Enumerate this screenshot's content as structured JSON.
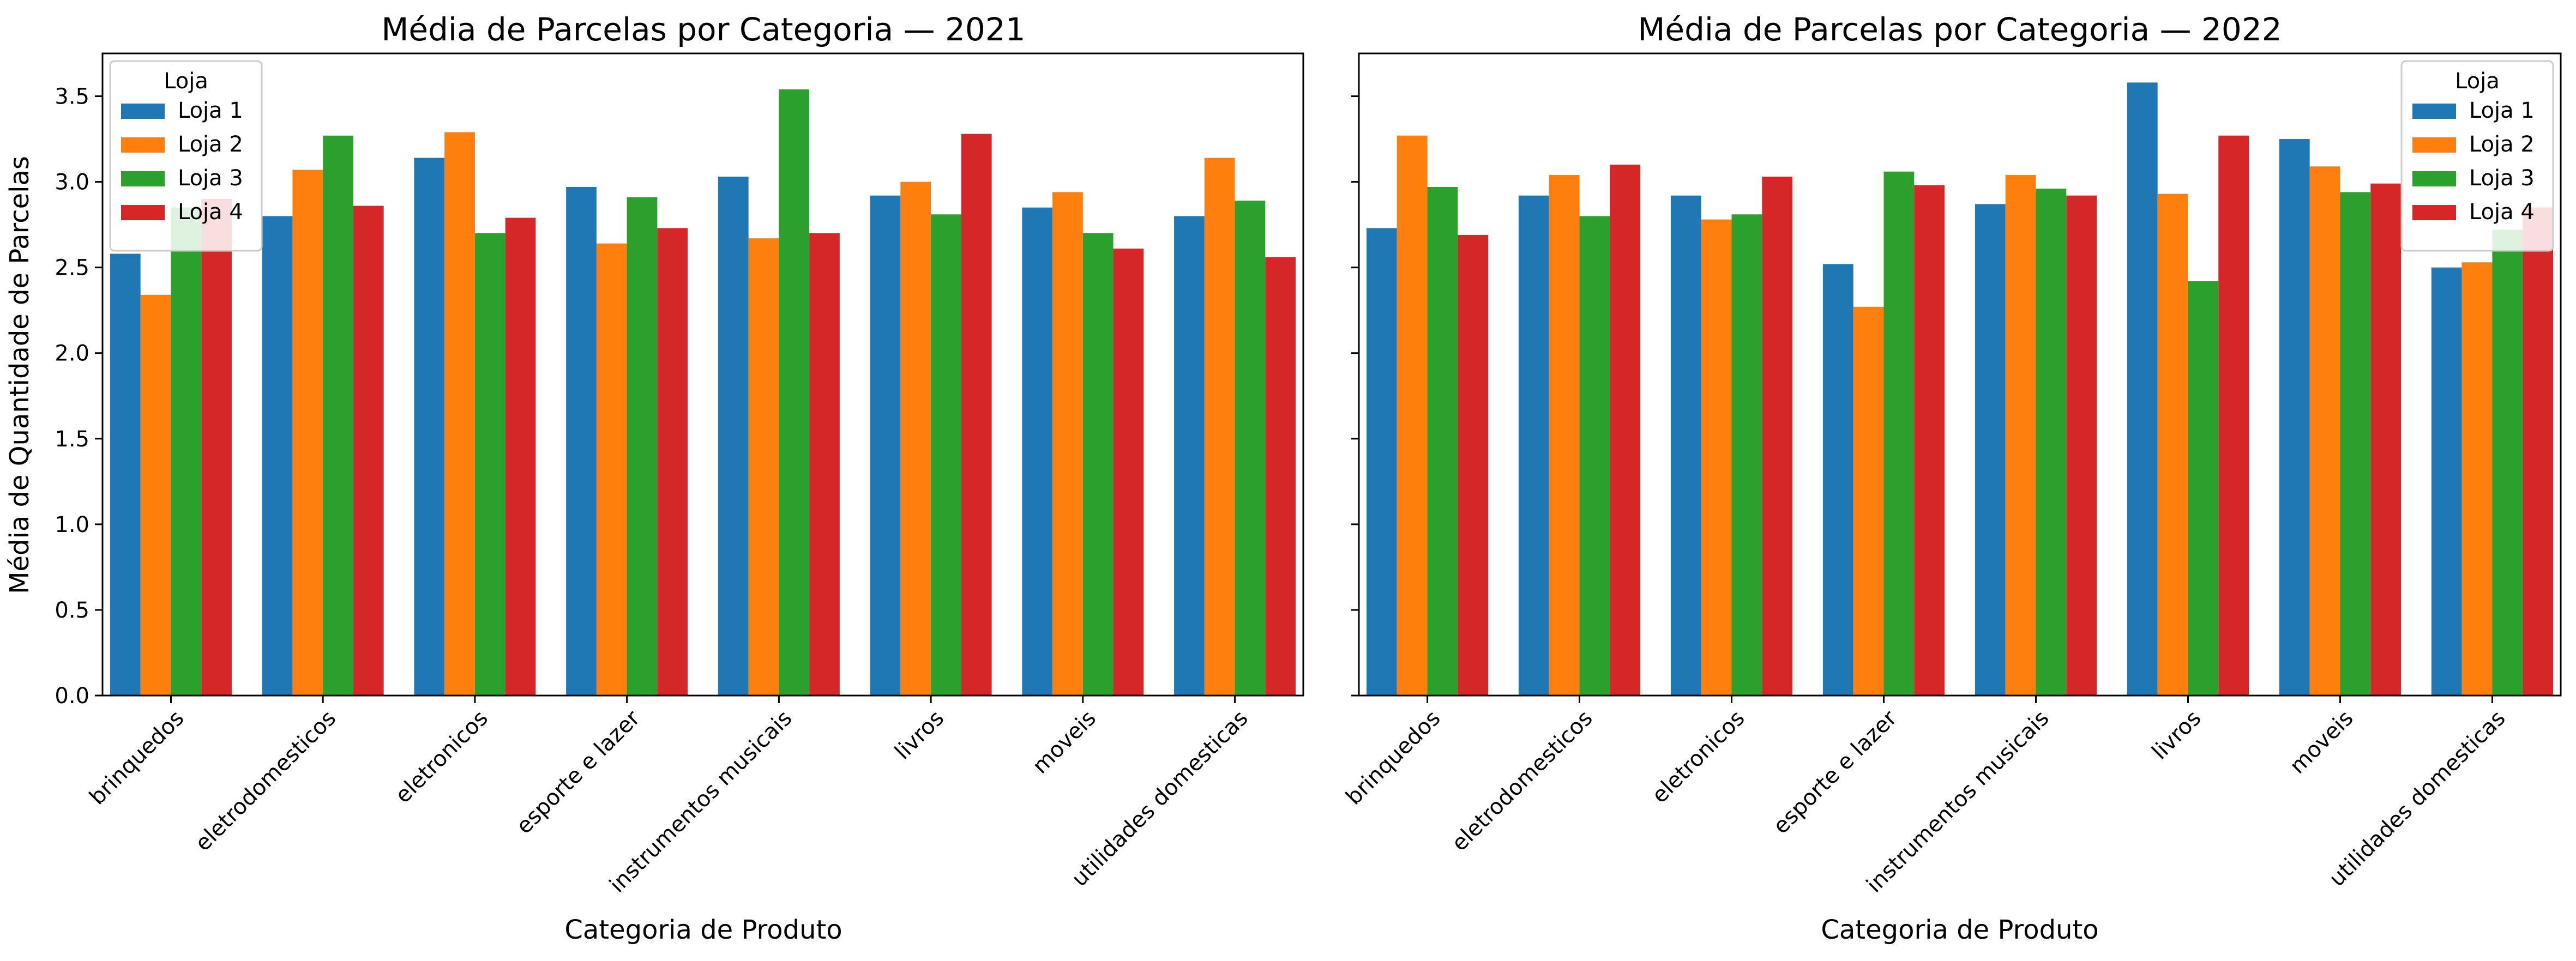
{
  "colors": {
    "series": [
      "#1f77b4",
      "#ff7f0e",
      "#2ca02c",
      "#d62728"
    ],
    "axes": "#000000",
    "background": "#ffffff",
    "legend_border": "#cccccc"
  },
  "figure": {
    "shared_ylabel": "Média de Quantidade de Parcelas",
    "sharey": true
  },
  "chart_data": [
    {
      "type": "bar",
      "title": "Média de Parcelas por Categoria — 2021",
      "xlabel": "Categoria de Produto",
      "ylabel": "Média de Quantidade de Parcelas",
      "ylim": [
        0,
        3.75
      ],
      "yticks": [
        "0.0",
        "0.5",
        "1.0",
        "1.5",
        "2.0",
        "2.5",
        "3.0",
        "3.5"
      ],
      "grid": false,
      "legend": {
        "title": "Loja",
        "position": "top-left"
      },
      "categories": [
        "brinquedos",
        "eletrodomesticos",
        "eletronicos",
        "esporte e lazer",
        "instrumentos musicais",
        "livros",
        "moveis",
        "utilidades domesticas"
      ],
      "series": [
        {
          "name": "Loja 1",
          "values": [
            2.58,
            2.8,
            3.14,
            2.97,
            3.03,
            2.92,
            2.85,
            2.8
          ]
        },
        {
          "name": "Loja 2",
          "values": [
            2.34,
            3.07,
            3.29,
            2.64,
            2.67,
            3.0,
            2.94,
            3.14
          ]
        },
        {
          "name": "Loja 3",
          "values": [
            2.85,
            3.27,
            2.7,
            2.91,
            3.54,
            2.81,
            2.7,
            2.89
          ]
        },
        {
          "name": "Loja 4",
          "values": [
            2.9,
            2.86,
            2.79,
            2.73,
            2.7,
            3.28,
            2.61,
            2.56
          ]
        }
      ]
    },
    {
      "type": "bar",
      "title": "Média de Parcelas por Categoria — 2022",
      "xlabel": "Categoria de Produto",
      "ylabel": "",
      "ylim": [
        0,
        3.75
      ],
      "yticks": [
        "0.0",
        "0.5",
        "1.0",
        "1.5",
        "2.0",
        "2.5",
        "3.0",
        "3.5"
      ],
      "grid": false,
      "legend": {
        "title": "Loja",
        "position": "top-right"
      },
      "categories": [
        "brinquedos",
        "eletrodomesticos",
        "eletronicos",
        "esporte e lazer",
        "instrumentos musicais",
        "livros",
        "moveis",
        "utilidades domesticas"
      ],
      "series": [
        {
          "name": "Loja 1",
          "values": [
            2.73,
            2.92,
            2.92,
            2.52,
            2.87,
            3.58,
            3.25,
            2.5
          ]
        },
        {
          "name": "Loja 2",
          "values": [
            3.27,
            3.04,
            2.78,
            2.27,
            3.04,
            2.93,
            3.09,
            2.53
          ]
        },
        {
          "name": "Loja 3",
          "values": [
            2.97,
            2.8,
            2.81,
            3.06,
            2.96,
            2.42,
            2.94,
            2.72
          ]
        },
        {
          "name": "Loja 4",
          "values": [
            2.69,
            3.1,
            3.03,
            2.98,
            2.92,
            3.27,
            2.99,
            2.85
          ]
        }
      ]
    }
  ]
}
